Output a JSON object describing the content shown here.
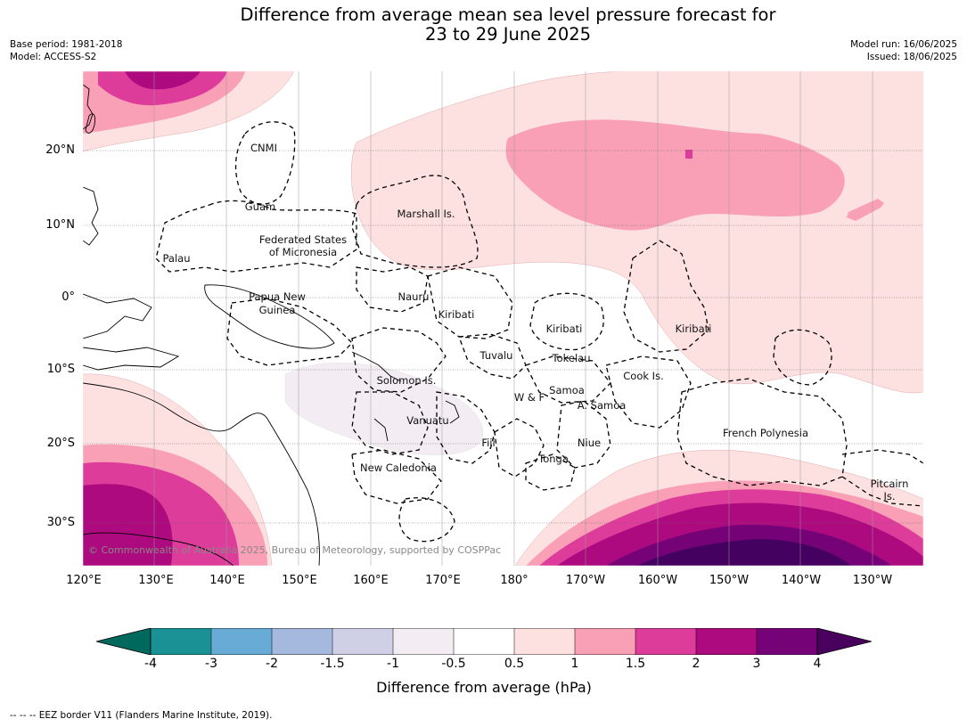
{
  "title": {
    "line1": "Difference from average mean sea level pressure forecast for",
    "line2": "23 to 29 June 2025"
  },
  "meta_left": {
    "base_period": "Base period: 1981-2018",
    "model": "Model: ACCESS-S2"
  },
  "meta_right": {
    "model_run": "Model run: 16/06/2025",
    "issued": "Issued: 18/06/2025"
  },
  "map": {
    "lat_labels": [
      "20°N",
      "10°N",
      "0°",
      "10°S",
      "20°S",
      "30°S"
    ],
    "lon_labels": [
      "120°E",
      "130°E",
      "140°E",
      "150°E",
      "160°E",
      "170°E",
      "180°",
      "170°W",
      "160°W",
      "150°W",
      "140°W",
      "130°W"
    ],
    "regions": {
      "cnmi": "CNMI",
      "guam": "Guam",
      "marshall": "Marshall Is.",
      "fsm_line1": "Federated States",
      "fsm_line2": "of Micronesia",
      "palau": "Palau",
      "png_line1": "Papua New",
      "png_line2": "Guinea",
      "nauru": "Nauru",
      "kiribati_w": "Kiribati",
      "kiribati_c": "Kiribati",
      "kiribati_e": "Kiribati",
      "tuvalu": "Tuvalu",
      "tokelau": "Tokelau",
      "cook": "Cook Is.",
      "solomon": "Solomon Is.",
      "wallis": "W & F",
      "samoa": "Samoa",
      "asamoa": "A. Samoa",
      "vanuatu": "Vanuatu",
      "fiji": "Fiji",
      "niue": "Niue",
      "tonga": "Tonga",
      "french_polynesia": "French Polynesia",
      "new_caledonia": "New Caledonia",
      "pitcairn_line1": "Pitcairn",
      "pitcairn_line2": "Is."
    },
    "copyright": "© Commonwealth of Australia 2025, Bureau of Meteorology, supported by COSPPac",
    "colors": {
      "pos_0_5": "#fde0e0",
      "pos_1": "#f99fb6",
      "pos_1_5": "#de3c9a",
      "pos_2": "#ad0a7f",
      "pos_3": "#760278",
      "pos_4": "#44015f",
      "neg_0_5": "#f3ecf2"
    }
  },
  "colorbar": {
    "ticks": [
      "-4",
      "-3",
      "-2",
      "-1.5",
      "-1",
      "-0.5",
      "0.5",
      "1",
      "1.5",
      "2",
      "3",
      "4"
    ],
    "colors": [
      "#1a9194",
      "#67abd6",
      "#a5b8dd",
      "#cfd0e6",
      "#f3ecf2",
      "#ffffff",
      "#fde0e0",
      "#f99fb6",
      "#de3c9a",
      "#ad0a7f",
      "#760278"
    ],
    "under_color": "#00695e",
    "over_color": "#49015e",
    "label": "Difference from average (hPa)"
  },
  "footer": "--  --  -- EEZ border V11 (Flanders Marine Institute, 2019)."
}
